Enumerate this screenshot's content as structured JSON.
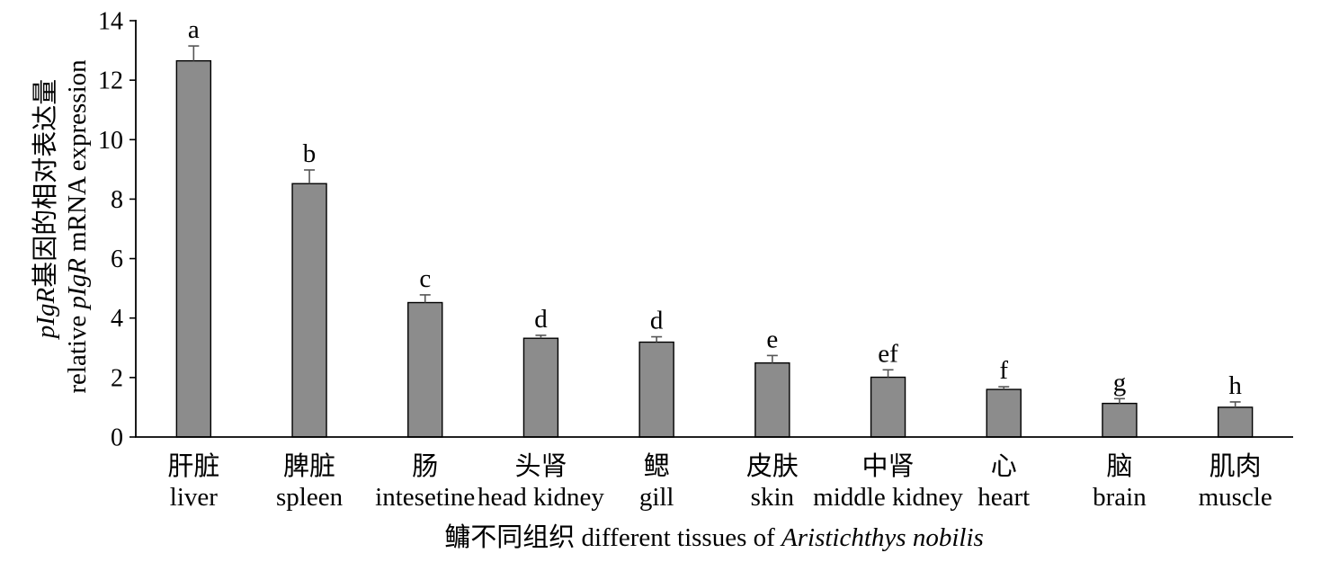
{
  "chart_data": {
    "type": "bar",
    "categories": [
      "liver",
      "spleen",
      "intesetine",
      "head kidney",
      "gill",
      "skin",
      "middle kidney",
      "heart",
      "brain",
      "muscle"
    ],
    "categories_zh": [
      "肝脏",
      "脾脏",
      "肠",
      "头肾",
      "鳃",
      "皮肤",
      "中肾",
      "心",
      "脑",
      "肌肉"
    ],
    "values": [
      12.65,
      8.52,
      4.52,
      3.32,
      3.19,
      2.49,
      2.01,
      1.6,
      1.13,
      1.0
    ],
    "error_bars": [
      0.5,
      0.46,
      0.26,
      0.1,
      0.18,
      0.25,
      0.25,
      0.09,
      0.16,
      0.18
    ],
    "significance_letters": [
      "a",
      "b",
      "c",
      "d",
      "d",
      "e",
      "ef",
      "f",
      "g",
      "h"
    ],
    "ylim": [
      0,
      14
    ],
    "yticks": [
      0,
      2,
      4,
      6,
      8,
      10,
      12,
      14
    ],
    "grid": false,
    "ylabel": {
      "line1": {
        "italic": "pIgR",
        "rest": "基因的相对表达量"
      },
      "line2": {
        "before": "relative ",
        "italic": "pIgR",
        "after": " mRNA expression"
      }
    },
    "xlabel": {
      "text": "鳙不同组织 different tissues of ",
      "italic": "Aristichthys nobilis"
    },
    "colors": {
      "bar_fill": "#8c8c8c",
      "bar_stroke": "#000000",
      "error_bar": "#555555",
      "axis": "#000000"
    }
  }
}
